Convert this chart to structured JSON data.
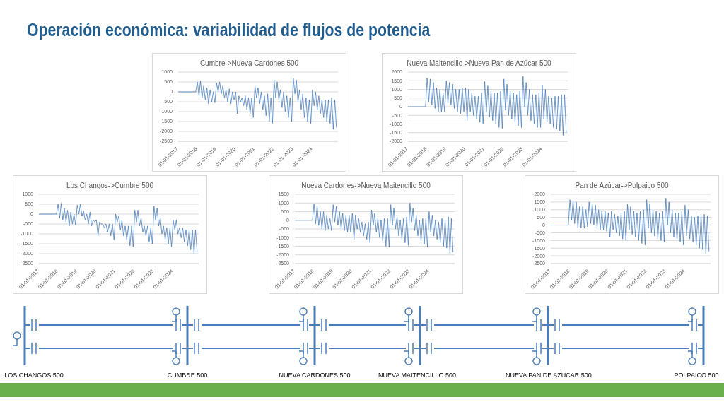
{
  "chart_data": [
    {
      "type": "other",
      "title": "Operación económica: variabilidad de flujos de potencia"
    },
    {
      "type": "line",
      "title": "Cumbre->Nueva Cardones 500",
      "color": "#4a7ebb",
      "grid": "y",
      "ylim": [
        -2500,
        1000
      ],
      "yticks": [
        -2500,
        -2000,
        -1500,
        -1000,
        -500,
        0,
        500,
        1000
      ],
      "xlim": [
        "2017-01-01",
        "2025-05-01"
      ],
      "xticks": [
        {
          "value": "2017-01-01",
          "label": "01-01-2017"
        },
        {
          "value": "2018-01-01",
          "label": "01-01-2018"
        },
        {
          "value": "2019-01-01",
          "label": "01-01-2019"
        },
        {
          "value": "2020-01-01",
          "label": "01-01-2020"
        },
        {
          "value": "2021-01-01",
          "label": "01-01-2021"
        },
        {
          "value": "2022-01-01",
          "label": "01-01-2022"
        },
        {
          "value": "2023-01-01",
          "label": "01-01-2023"
        },
        {
          "value": "2024-01-01",
          "label": "01-01-2024"
        }
      ],
      "x": [
        "2017-01",
        "2017-12",
        "2018-01",
        "2018-02",
        "2018-03",
        "2018-04",
        "2018-05",
        "2018-06",
        "2018-07",
        "2018-08",
        "2018-09",
        "2018-10",
        "2018-11",
        "2018-12",
        "2019-01",
        "2019-02",
        "2019-03",
        "2019-04",
        "2019-05",
        "2019-06",
        "2019-07",
        "2019-08",
        "2019-09",
        "2019-10",
        "2019-11",
        "2019-12",
        "2020-01",
        "2020-02",
        "2020-03",
        "2020-04",
        "2020-05",
        "2020-06",
        "2020-07",
        "2020-08",
        "2020-09",
        "2020-10",
        "2020-11",
        "2020-12",
        "2021-01",
        "2021-02",
        "2021-03",
        "2021-04",
        "2021-05",
        "2021-06",
        "2021-07",
        "2021-08",
        "2021-09",
        "2021-10",
        "2021-11",
        "2021-12",
        "2022-01",
        "2022-02",
        "2022-03",
        "2022-04",
        "2022-05",
        "2022-06",
        "2022-07",
        "2022-08",
        "2022-09",
        "2022-10",
        "2022-11",
        "2022-12",
        "2023-01",
        "2023-02",
        "2023-03",
        "2023-04",
        "2023-05",
        "2023-06",
        "2023-07",
        "2023-08",
        "2023-09",
        "2023-10",
        "2023-11",
        "2023-12",
        "2024-01",
        "2024-02",
        "2024-03",
        "2024-04",
        "2024-05",
        "2024-06",
        "2024-07",
        "2024-08",
        "2024-09",
        "2024-10",
        "2024-11",
        "2024-12",
        "2025-01",
        "2025-02",
        "2025-03",
        "2025-04"
      ],
      "values": [
        0,
        0,
        500,
        -200,
        550,
        -300,
        300,
        -400,
        200,
        -600,
        100,
        -500,
        0,
        -550,
        450,
        0,
        500,
        -100,
        300,
        -300,
        100,
        -500,
        150,
        -600,
        0,
        -400,
        0,
        -1100,
        -200,
        -500,
        -300,
        -700,
        -200,
        -900,
        -300,
        -1100,
        -300,
        -1300,
        300,
        -300,
        200,
        -600,
        0,
        -900,
        -200,
        -1200,
        -100,
        -1500,
        -300,
        -1600,
        600,
        -300,
        500,
        -400,
        100,
        -800,
        0,
        -1000,
        -200,
        -1300,
        -300,
        -1500,
        700,
        -100,
        600,
        -500,
        100,
        -900,
        -100,
        -1300,
        -300,
        -1500,
        -400,
        -1600,
        100,
        -700,
        0,
        -900,
        -200,
        -1100,
        -400,
        -1300,
        -400,
        -1500,
        -400,
        -1600,
        -300,
        -1900,
        -400,
        -1800
      ]
    },
    {
      "type": "line",
      "title": "Nueva Maitencillo->Nueva  Pan de Azúcar 500",
      "color": "#4a7ebb",
      "grid": "y",
      "ylim": [
        -2000,
        2000
      ],
      "yticks": [
        -2000,
        -1500,
        -1000,
        -500,
        0,
        500,
        1000,
        1500,
        2000
      ],
      "xlim": [
        "2017-01-01",
        "2025-05-01"
      ],
      "xticks": [
        {
          "value": "2017-01-01",
          "label": "01-01-2017"
        },
        {
          "value": "2018-01-01",
          "label": "01-01-2018"
        },
        {
          "value": "2019-01-01",
          "label": "01-01-2019"
        },
        {
          "value": "2020-01-01",
          "label": "01-01-2020"
        },
        {
          "value": "2021-01-01",
          "label": "01-01-2021"
        },
        {
          "value": "2022-01-01",
          "label": "01-01-2022"
        },
        {
          "value": "2023-01-01",
          "label": "01-01-2023"
        },
        {
          "value": "2024-01-01",
          "label": "01-01-2024"
        }
      ],
      "x": [
        "2017-01",
        "2017-12",
        "2018-01",
        "2018-02",
        "2018-03",
        "2018-04",
        "2018-05",
        "2018-06",
        "2018-07",
        "2018-08",
        "2018-09",
        "2018-10",
        "2018-11",
        "2018-12",
        "2019-01",
        "2019-02",
        "2019-03",
        "2019-04",
        "2019-05",
        "2019-06",
        "2019-07",
        "2019-08",
        "2019-09",
        "2019-10",
        "2019-11",
        "2019-12",
        "2020-01",
        "2020-02",
        "2020-03",
        "2020-04",
        "2020-05",
        "2020-06",
        "2020-07",
        "2020-08",
        "2020-09",
        "2020-10",
        "2020-11",
        "2020-12",
        "2021-01",
        "2021-02",
        "2021-03",
        "2021-04",
        "2021-05",
        "2021-06",
        "2021-07",
        "2021-08",
        "2021-09",
        "2021-10",
        "2021-11",
        "2021-12",
        "2022-01",
        "2022-02",
        "2022-03",
        "2022-04",
        "2022-05",
        "2022-06",
        "2022-07",
        "2022-08",
        "2022-09",
        "2022-10",
        "2022-11",
        "2022-12",
        "2023-01",
        "2023-02",
        "2023-03",
        "2023-04",
        "2023-05",
        "2023-06",
        "2023-07",
        "2023-08",
        "2023-09",
        "2023-10",
        "2023-11",
        "2023-12",
        "2024-01",
        "2024-02",
        "2024-03",
        "2024-04",
        "2024-05",
        "2024-06",
        "2024-07",
        "2024-08",
        "2024-09",
        "2024-10",
        "2024-11",
        "2024-12",
        "2025-01",
        "2025-02",
        "2025-03",
        "2025-04"
      ],
      "values": [
        0,
        0,
        1650,
        300,
        1600,
        100,
        1400,
        -100,
        1100,
        -300,
        1000,
        -300,
        800,
        -300,
        1500,
        200,
        1400,
        100,
        1300,
        -100,
        1000,
        -300,
        1000,
        -400,
        1100,
        -300,
        1100,
        -800,
        1000,
        -300,
        800,
        -500,
        600,
        -700,
        600,
        -900,
        800,
        -1000,
        1450,
        -300,
        1200,
        -600,
        900,
        -800,
        800,
        -1000,
        800,
        -1200,
        900,
        -1250,
        1600,
        -200,
        1300,
        -500,
        900,
        -700,
        800,
        -900,
        700,
        -1100,
        900,
        -1200,
        1750,
        0,
        1400,
        -500,
        1000,
        -800,
        700,
        -1000,
        700,
        -1200,
        800,
        -1200,
        1250,
        -700,
        1000,
        -900,
        600,
        -1000,
        500,
        -1200,
        600,
        -1300,
        600,
        -1400,
        700,
        -1650,
        700,
        -1500
      ]
    },
    {
      "type": "line",
      "title": "Los Changos->Cumbre 500",
      "color": "#4a7ebb",
      "grid": "y",
      "ylim": [
        -2500,
        1000
      ],
      "yticks": [
        -2500,
        -2000,
        -1500,
        -1000,
        -500,
        0,
        500,
        1000
      ],
      "xlim": [
        "2017-01-01",
        "2025-05-01"
      ],
      "xticks": [
        {
          "value": "2017-01-01",
          "label": "01-01-2017"
        },
        {
          "value": "2018-01-01",
          "label": "01-01-2018"
        },
        {
          "value": "2019-01-01",
          "label": "01-01-2019"
        },
        {
          "value": "2020-01-01",
          "label": "01-01-2020"
        },
        {
          "value": "2021-01-01",
          "label": "01-01-2021"
        },
        {
          "value": "2022-01-01",
          "label": "01-01-2022"
        },
        {
          "value": "2023-01-01",
          "label": "01-01-2023"
        },
        {
          "value": "2024-01-01",
          "label": "01-01-2024"
        }
      ],
      "x": [
        "2017-01",
        "2017-12",
        "2018-01",
        "2018-02",
        "2018-03",
        "2018-04",
        "2018-05",
        "2018-06",
        "2018-07",
        "2018-08",
        "2018-09",
        "2018-10",
        "2018-11",
        "2018-12",
        "2019-01",
        "2019-02",
        "2019-03",
        "2019-04",
        "2019-05",
        "2019-06",
        "2019-07",
        "2019-08",
        "2019-09",
        "2019-10",
        "2019-11",
        "2019-12",
        "2020-01",
        "2020-02",
        "2020-03",
        "2020-04",
        "2020-05",
        "2020-06",
        "2020-07",
        "2020-08",
        "2020-09",
        "2020-10",
        "2020-11",
        "2020-12",
        "2021-01",
        "2021-02",
        "2021-03",
        "2021-04",
        "2021-05",
        "2021-06",
        "2021-07",
        "2021-08",
        "2021-09",
        "2021-10",
        "2021-11",
        "2021-12",
        "2022-01",
        "2022-02",
        "2022-03",
        "2022-04",
        "2022-05",
        "2022-06",
        "2022-07",
        "2022-08",
        "2022-09",
        "2022-10",
        "2022-11",
        "2022-12",
        "2023-01",
        "2023-02",
        "2023-03",
        "2023-04",
        "2023-05",
        "2023-06",
        "2023-07",
        "2023-08",
        "2023-09",
        "2023-10",
        "2023-11",
        "2023-12",
        "2024-01",
        "2024-02",
        "2024-03",
        "2024-04",
        "2024-05",
        "2024-06",
        "2024-07",
        "2024-08",
        "2024-09",
        "2024-10",
        "2024-11",
        "2024-12",
        "2025-01",
        "2025-02",
        "2025-03",
        "2025-04"
      ],
      "values": [
        0,
        0,
        500,
        -200,
        550,
        -300,
        300,
        -400,
        200,
        -600,
        100,
        -500,
        0,
        -550,
        450,
        0,
        500,
        -100,
        150,
        -300,
        0,
        -500,
        100,
        -600,
        -300,
        -400,
        -300,
        -1100,
        -400,
        -500,
        -500,
        -700,
        -500,
        -900,
        -500,
        -1100,
        -500,
        -1300,
        0,
        -400,
        -100,
        -800,
        -300,
        -1100,
        -600,
        -1300,
        -600,
        -1600,
        -600,
        -1650,
        200,
        -400,
        200,
        -600,
        -200,
        -900,
        -600,
        -1100,
        -600,
        -1400,
        -700,
        -1500,
        400,
        -300,
        300,
        -600,
        -200,
        -1000,
        -600,
        -1300,
        -700,
        -1500,
        -700,
        -1650,
        -300,
        -800,
        -300,
        -1000,
        -700,
        -1200,
        -700,
        -1400,
        -800,
        -1600,
        -800,
        -1800,
        -800,
        -2000,
        -800,
        -1900
      ]
    },
    {
      "type": "line",
      "title": "Nueva Cardones->Nueva Maitencillo 500",
      "color": "#4a7ebb",
      "grid": "y",
      "ylim": [
        -2500,
        1500
      ],
      "yticks": [
        -2500,
        -2000,
        -1500,
        -1000,
        -500,
        0,
        500,
        1000,
        1500
      ],
      "xlim": [
        "2017-01-01",
        "2025-05-01"
      ],
      "xticks": [
        {
          "value": "2017-01-01",
          "label": "01-01-2017"
        },
        {
          "value": "2018-01-01",
          "label": "01-01-2018"
        },
        {
          "value": "2019-01-01",
          "label": "01-01-2019"
        },
        {
          "value": "2020-01-01",
          "label": "01-01-2020"
        },
        {
          "value": "2021-01-01",
          "label": "01-01-2021"
        },
        {
          "value": "2022-01-01",
          "label": "01-01-2022"
        },
        {
          "value": "2023-01-01",
          "label": "01-01-2023"
        },
        {
          "value": "2024-01-01",
          "label": "01-01-2024"
        }
      ],
      "x": [
        "2017-01",
        "2017-12",
        "2018-01",
        "2018-02",
        "2018-03",
        "2018-04",
        "2018-05",
        "2018-06",
        "2018-07",
        "2018-08",
        "2018-09",
        "2018-10",
        "2018-11",
        "2018-12",
        "2019-01",
        "2019-02",
        "2019-03",
        "2019-04",
        "2019-05",
        "2019-06",
        "2019-07",
        "2019-08",
        "2019-09",
        "2019-10",
        "2019-11",
        "2019-12",
        "2020-01",
        "2020-02",
        "2020-03",
        "2020-04",
        "2020-05",
        "2020-06",
        "2020-07",
        "2020-08",
        "2020-09",
        "2020-10",
        "2020-11",
        "2020-12",
        "2021-01",
        "2021-02",
        "2021-03",
        "2021-04",
        "2021-05",
        "2021-06",
        "2021-07",
        "2021-08",
        "2021-09",
        "2021-10",
        "2021-11",
        "2021-12",
        "2022-01",
        "2022-02",
        "2022-03",
        "2022-04",
        "2022-05",
        "2022-06",
        "2022-07",
        "2022-08",
        "2022-09",
        "2022-10",
        "2022-11",
        "2022-12",
        "2023-01",
        "2023-02",
        "2023-03",
        "2023-04",
        "2023-05",
        "2023-06",
        "2023-07",
        "2023-08",
        "2023-09",
        "2023-10",
        "2023-11",
        "2023-12",
        "2024-01",
        "2024-02",
        "2024-03",
        "2024-04",
        "2024-05",
        "2024-06",
        "2024-07",
        "2024-08",
        "2024-09",
        "2024-10",
        "2024-11",
        "2024-12",
        "2025-01",
        "2025-02",
        "2025-03",
        "2025-04"
      ],
      "values": [
        0,
        0,
        950,
        -200,
        850,
        -300,
        500,
        -500,
        500,
        -600,
        300,
        -500,
        100,
        -600,
        900,
        -100,
        800,
        -300,
        500,
        -500,
        400,
        -600,
        300,
        -700,
        300,
        -700,
        400,
        -1100,
        300,
        -500,
        100,
        -700,
        -100,
        -900,
        -200,
        -1100,
        -100,
        -1300,
        600,
        -300,
        400,
        -700,
        100,
        -1000,
        0,
        -1200,
        100,
        -1500,
        100,
        -1550,
        900,
        -300,
        700,
        -500,
        200,
        -900,
        0,
        -1100,
        100,
        -1300,
        200,
        -1450,
        1000,
        -100,
        700,
        -600,
        300,
        -900,
        0,
        -1200,
        100,
        -1400,
        100,
        -1550,
        500,
        -700,
        300,
        -900,
        0,
        -1100,
        -100,
        -1300,
        100,
        -1500,
        0,
        -1600,
        200,
        -1900,
        100,
        -1850
      ]
    },
    {
      "type": "line",
      "title": "Pan de Azúcar->Polpaico 500",
      "color": "#4a7ebb",
      "grid": "y",
      "ylim": [
        -2500,
        2000
      ],
      "yticks": [
        -2500,
        -2000,
        -1500,
        -1000,
        -500,
        0,
        500,
        1000,
        1500,
        2000
      ],
      "xlim": [
        "2017-01-01",
        "2025-05-01"
      ],
      "xticks": [
        {
          "value": "2017-01-01",
          "label": "01-01-2017"
        },
        {
          "value": "2018-01-01",
          "label": "01-01-2018"
        },
        {
          "value": "2019-01-01",
          "label": "01-01-2019"
        },
        {
          "value": "2020-01-01",
          "label": "01-01-2020"
        },
        {
          "value": "2021-01-01",
          "label": "01-01-2021"
        },
        {
          "value": "2022-01-01",
          "label": "01-01-2022"
        },
        {
          "value": "2023-01-01",
          "label": "01-01-2023"
        },
        {
          "value": "2024-01-01",
          "label": "01-01-2024"
        }
      ],
      "x": [
        "2017-01",
        "2017-12",
        "2018-01",
        "2018-02",
        "2018-03",
        "2018-04",
        "2018-05",
        "2018-06",
        "2018-07",
        "2018-08",
        "2018-09",
        "2018-10",
        "2018-11",
        "2018-12",
        "2019-01",
        "2019-02",
        "2019-03",
        "2019-04",
        "2019-05",
        "2019-06",
        "2019-07",
        "2019-08",
        "2019-09",
        "2019-10",
        "2019-11",
        "2019-12",
        "2020-01",
        "2020-02",
        "2020-03",
        "2020-04",
        "2020-05",
        "2020-06",
        "2020-07",
        "2020-08",
        "2020-09",
        "2020-10",
        "2020-11",
        "2020-12",
        "2021-01",
        "2021-02",
        "2021-03",
        "2021-04",
        "2021-05",
        "2021-06",
        "2021-07",
        "2021-08",
        "2021-09",
        "2021-10",
        "2021-11",
        "2021-12",
        "2022-01",
        "2022-02",
        "2022-03",
        "2022-04",
        "2022-05",
        "2022-06",
        "2022-07",
        "2022-08",
        "2022-09",
        "2022-10",
        "2022-11",
        "2022-12",
        "2023-01",
        "2023-02",
        "2023-03",
        "2023-04",
        "2023-05",
        "2023-06",
        "2023-07",
        "2023-08",
        "2023-09",
        "2023-10",
        "2023-11",
        "2023-12",
        "2024-01",
        "2024-02",
        "2024-03",
        "2024-04",
        "2024-05",
        "2024-06",
        "2024-07",
        "2024-08",
        "2024-09",
        "2024-10",
        "2024-11",
        "2024-12",
        "2025-01",
        "2025-02",
        "2025-03",
        "2025-04"
      ],
      "values": [
        0,
        0,
        1650,
        300,
        1600,
        100,
        1500,
        -200,
        1200,
        -200,
        1200,
        -200,
        1000,
        -100,
        1500,
        100,
        1400,
        0,
        1300,
        -200,
        1000,
        -300,
        900,
        -300,
        900,
        -400,
        800,
        -800,
        900,
        -300,
        700,
        -500,
        600,
        -700,
        800,
        -900,
        900,
        -1000,
        1350,
        -300,
        1200,
        -600,
        900,
        -800,
        800,
        -1000,
        900,
        -1200,
        1000,
        -1300,
        1650,
        -200,
        1400,
        -500,
        1000,
        -700,
        900,
        -900,
        800,
        -1000,
        900,
        -1100,
        1750,
        0,
        1500,
        -500,
        1000,
        -800,
        800,
        -1000,
        800,
        -1100,
        900,
        -1300,
        1300,
        -700,
        1000,
        -900,
        600,
        -1100,
        500,
        -1300,
        600,
        -1500,
        700,
        -1600,
        700,
        -1850,
        600,
        -1700
      ]
    },
    {
      "type": "other",
      "annotations": [
        "LOS CHANGOS 500",
        "CUMBRE 500",
        "NUEVA CARDONES 500",
        "NUEVA MAITENCILLO 500",
        "NUEVA PAN DE AZÚCAR 500",
        "POLPAICO 500"
      ]
    }
  ]
}
